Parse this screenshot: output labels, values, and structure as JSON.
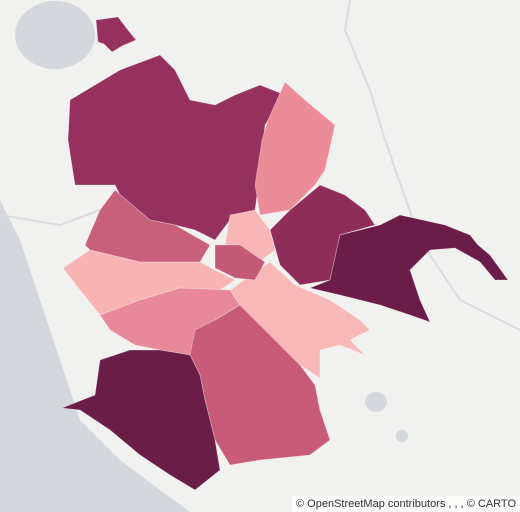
{
  "attribution": "© OpenStreetMap contributors , , , © CARTO"
}
